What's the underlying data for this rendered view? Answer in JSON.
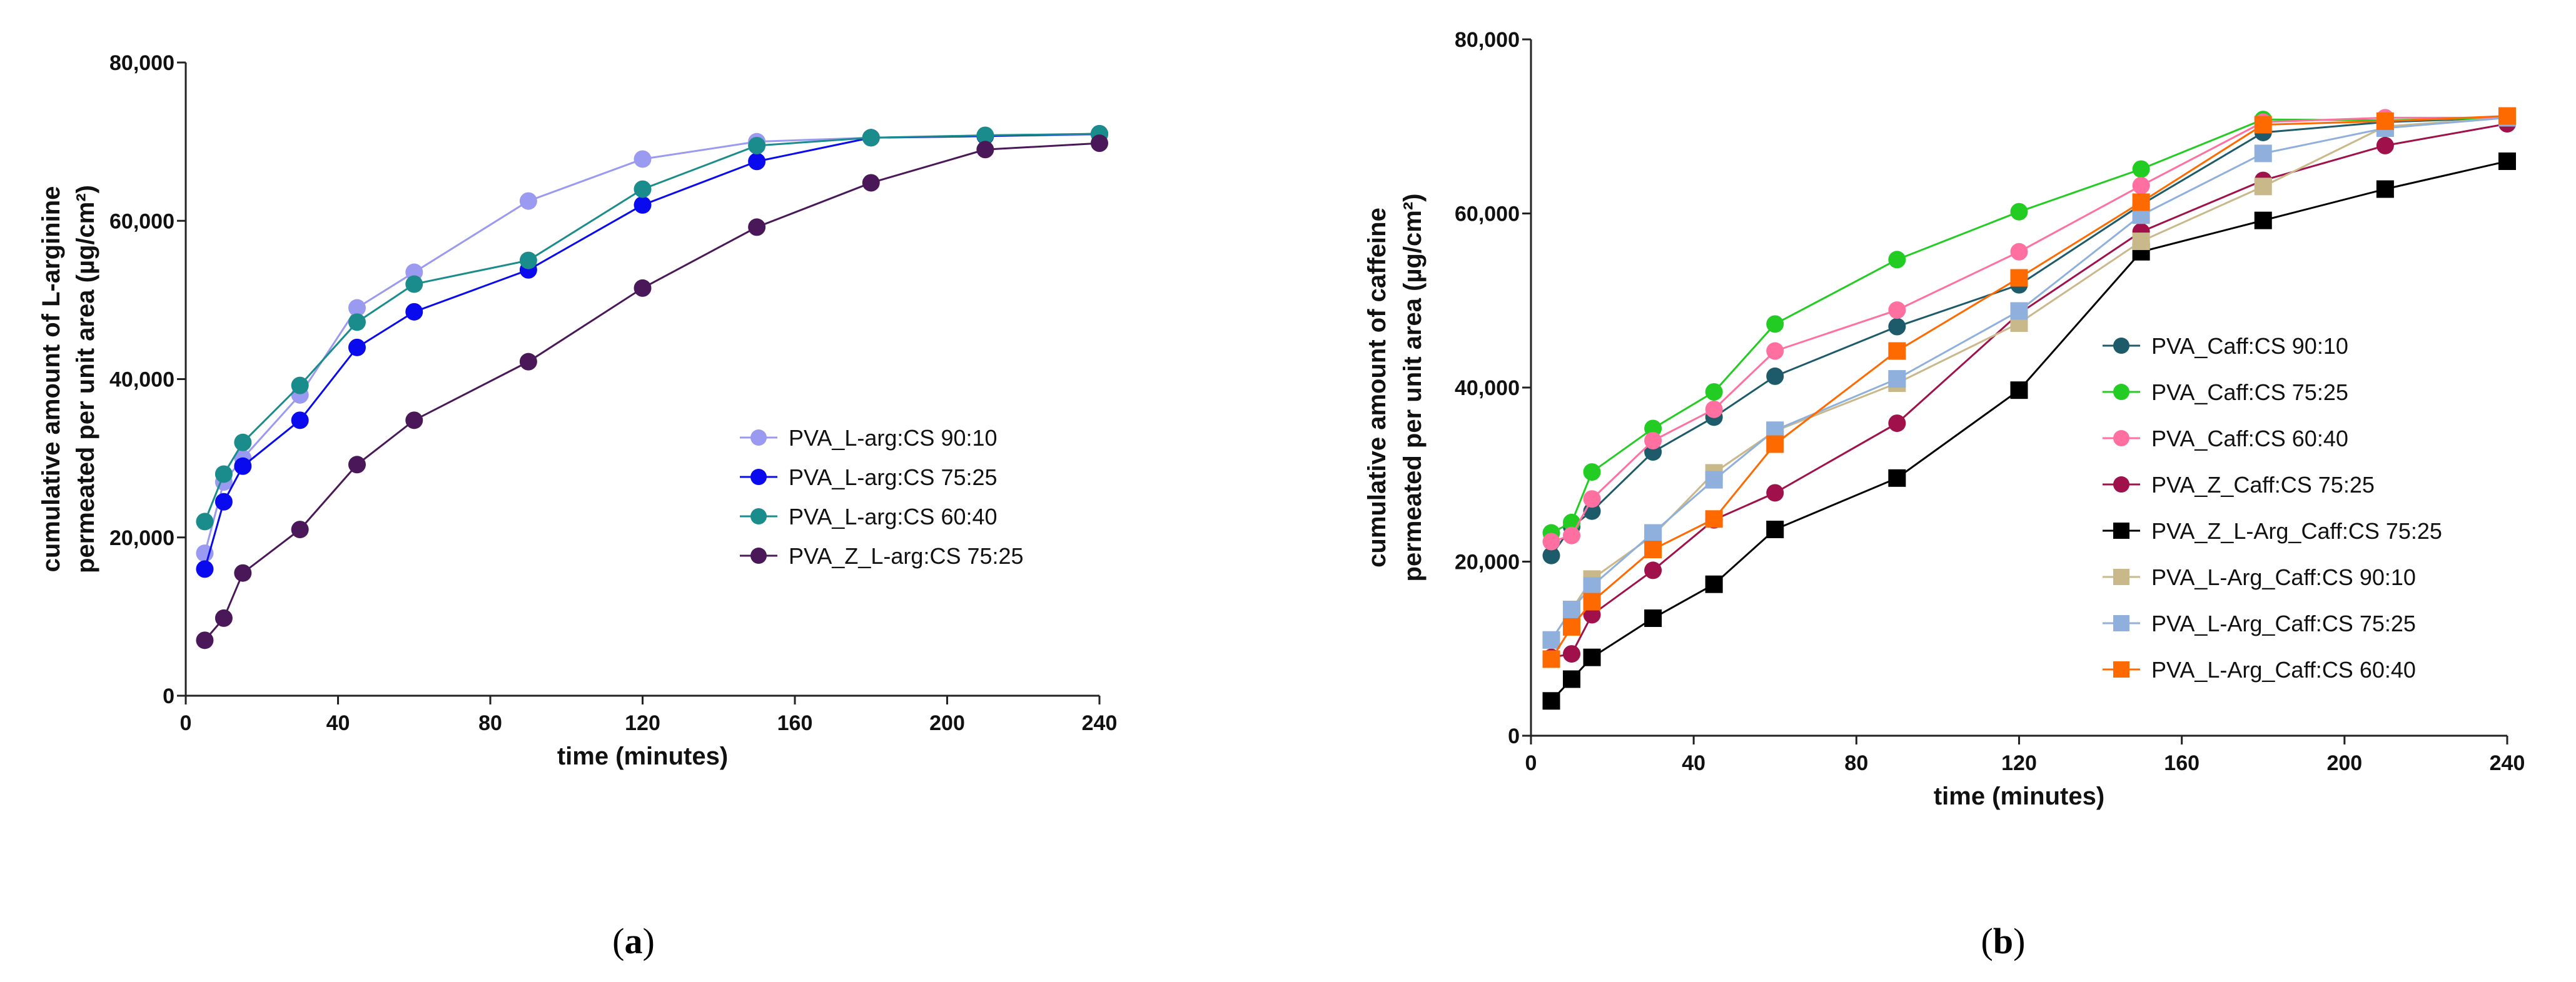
{
  "chart_data": [
    {
      "type": "line",
      "panel_label": "a",
      "xlabel": "time (minutes)",
      "ylabel_line1": "cumulative amount of L-arginine",
      "ylabel_line2": "permeated per unit area (µg/cm²)",
      "xlim": [
        0,
        240
      ],
      "ylim": [
        0,
        80000
      ],
      "xticks": [
        "0",
        "40",
        "80",
        "120",
        "160",
        "200",
        "240"
      ],
      "yticks": [
        "0",
        "20,000",
        "40,000",
        "60,000",
        "80,000"
      ],
      "legend_position": "center-right",
      "x": [
        5,
        10,
        15,
        30,
        45,
        60,
        90,
        120,
        150,
        180,
        210,
        240
      ],
      "series": [
        {
          "name": "PVA_L-arg:CS  90:10",
          "color": "#9a9af0",
          "marker": "circle",
          "values": [
            18000,
            27000,
            30000,
            38000,
            49000,
            53500,
            62500,
            67800,
            70000,
            70500,
            70700,
            70900
          ]
        },
        {
          "name": "PVA_L-arg:CS  75:25",
          "color": "#0a0aee",
          "marker": "circle",
          "values": [
            16000,
            24500,
            29000,
            34800,
            44000,
            48500,
            53800,
            62000,
            67500,
            70500,
            70700,
            71000
          ]
        },
        {
          "name": "PVA_L-arg:CS  60:40",
          "color": "#1a8c8c",
          "marker": "circle",
          "values": [
            22000,
            28000,
            32000,
            39200,
            47200,
            52000,
            55000,
            64000,
            69500,
            70500,
            70800,
            71000
          ]
        },
        {
          "name": "PVA_Z_L-arg:CS  75:25",
          "color": "#4a1858",
          "marker": "circle",
          "values": [
            7000,
            9800,
            15500,
            21000,
            29200,
            34800,
            42200,
            51500,
            59200,
            64800,
            69000,
            69800
          ]
        }
      ]
    },
    {
      "type": "line",
      "panel_label": "b",
      "xlabel": "time (minutes)",
      "ylabel_line1": "cumulative amount of caffeine",
      "ylabel_line2": "permeated per unit area (µg/cm²)",
      "xlim": [
        0,
        240
      ],
      "ylim": [
        0,
        80000
      ],
      "xticks": [
        "0",
        "40",
        "80",
        "120",
        "160",
        "200",
        "240"
      ],
      "yticks": [
        "0",
        "20,000",
        "40,000",
        "60,000",
        "80,000"
      ],
      "legend_position": "center-right",
      "x": [
        5,
        10,
        15,
        30,
        45,
        60,
        90,
        120,
        150,
        180,
        210,
        240
      ],
      "series": [
        {
          "name": "PVA_Caff:CS  90:10",
          "color": "#1d5a6a",
          "marker": "circle",
          "values": [
            20700,
            24000,
            25800,
            32600,
            36600,
            41300,
            47000,
            51800,
            61000,
            69300,
            70500,
            71000
          ]
        },
        {
          "name": "PVA_Caff:CS  75:25",
          "color": "#22cc22",
          "marker": "circle",
          "values": [
            23300,
            24500,
            30300,
            35300,
            39500,
            47300,
            54700,
            60200,
            65100,
            70800,
            70700,
            71000
          ]
        },
        {
          "name": "PVA_Caff:CS 60:40",
          "color": "#ff70a0",
          "marker": "circle",
          "values": [
            22300,
            23000,
            27200,
            33900,
            37500,
            44200,
            48900,
            55600,
            63200,
            70500,
            71000,
            71000
          ]
        },
        {
          "name": "PVA_Z_Caff:CS 75:25",
          "color": "#a0104a",
          "marker": "circle",
          "values": [
            9000,
            9400,
            13900,
            19000,
            24800,
            27900,
            35900,
            48500,
            57900,
            63800,
            67800,
            70300
          ]
        },
        {
          "name": "PVA_Z_L-Arg_Caff:CS 75:25",
          "color": "#000000",
          "marker": "square",
          "values": [
            4000,
            6500,
            9000,
            13500,
            17400,
            23700,
            29600,
            39700,
            55600,
            59200,
            62800,
            66000
          ]
        },
        {
          "name": "PVA_L-Arg_Caff:CS 90:10",
          "color": "#c8b88a",
          "marker": "square",
          "values": [
            11000,
            14500,
            18000,
            23000,
            30200,
            35000,
            40500,
            47400,
            56800,
            63100,
            70000,
            71000
          ]
        },
        {
          "name": "PVA_L-Arg_Caff:CS 75:25",
          "color": "#8fb0dd",
          "marker": "square",
          "values": [
            11000,
            14500,
            17200,
            23300,
            29400,
            35100,
            41000,
            48800,
            59800,
            66900,
            69800,
            71000
          ]
        },
        {
          "name": "PVA_L-Arg_Caff:CS 60:40",
          "color": "#ff6a00",
          "marker": "square",
          "values": [
            8800,
            12500,
            15400,
            21400,
            24900,
            33500,
            44200,
            52600,
            61300,
            70200,
            70600,
            71200
          ]
        }
      ]
    }
  ]
}
